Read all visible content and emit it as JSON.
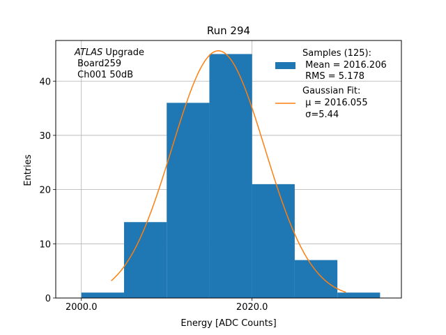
{
  "chart_data": {
    "type": "bar",
    "title": "Run 294",
    "xlabel": "Energy [ADC Counts]",
    "ylabel": "Entries",
    "xlim": [
      1997.0,
      2037.5
    ],
    "ylim": [
      0,
      47.5
    ],
    "grid": true,
    "x_ticks": [
      2000,
      2020
    ],
    "x_tick_labels": [
      "2000.0",
      "2020.0"
    ],
    "y_ticks": [
      0,
      10,
      20,
      30,
      40
    ],
    "y_tick_labels": [
      "0",
      "10",
      "20",
      "30",
      "40"
    ],
    "histogram": {
      "name": "Samples",
      "color": "#1f77b4",
      "bin_edges": [
        2000,
        2005,
        2010,
        2015,
        2020,
        2025,
        2030,
        2035
      ],
      "counts": [
        1,
        14,
        36,
        45,
        21,
        7,
        1
      ]
    },
    "fit": {
      "name": "Gaussian Fit",
      "color": "#ff7f0e",
      "amplitude": 45.6,
      "mu": 2016.055,
      "sigma": 5.44,
      "x_range": [
        2003.5,
        2031.0
      ]
    },
    "legend": {
      "placement": "top-right",
      "entries": [
        {
          "kind": "patch",
          "lines": [
            "Samples (125):",
            " Mean = 2016.206",
            " RMS = 5.178"
          ]
        },
        {
          "kind": "line",
          "lines": [
            "Gaussian Fit:",
            " μ = 2016.055",
            " σ=5.44"
          ]
        }
      ]
    },
    "annotation": {
      "placement": "top-left",
      "italic": "ATLAS",
      "rest": " Upgrade",
      "lines": [
        " Board259",
        " Ch001 50dB"
      ]
    }
  }
}
